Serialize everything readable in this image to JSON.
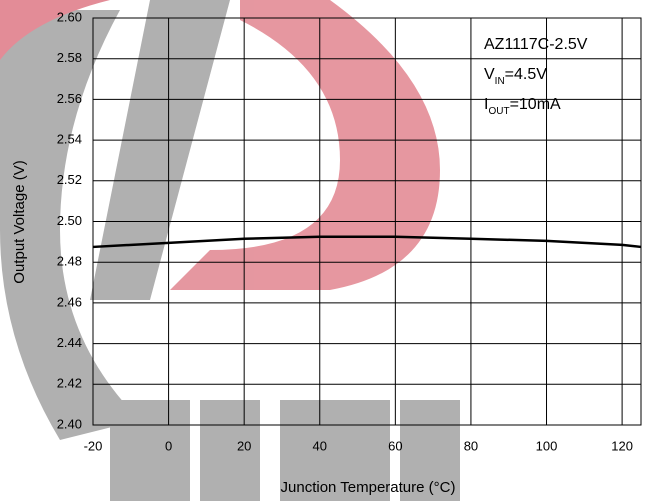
{
  "chart_data": {
    "type": "line",
    "xlabel": "Junction Temperature (°C)",
    "ylabel": "Output Voltage (V)",
    "annotations": [
      "AZ1117C-2.5V",
      [
        "V",
        "IN",
        "=4.5V"
      ],
      [
        "I",
        "OUT",
        "=10mA"
      ]
    ],
    "x": [
      -20,
      0,
      20,
      40,
      60,
      80,
      100,
      120,
      125
    ],
    "series": [
      {
        "color": "#000000",
        "values": [
          2.4875,
          2.4895,
          2.4915,
          2.4925,
          2.4925,
          2.4915,
          2.4905,
          2.4885,
          2.4875
        ]
      }
    ],
    "xlim": [
      -20,
      125
    ],
    "xticks": [
      -20,
      0,
      20,
      40,
      60,
      80,
      100,
      120
    ],
    "ylim": [
      2.4,
      2.6
    ],
    "yticks": [
      {
        "value": 2.4,
        "label": "2.40"
      },
      2.42,
      2.44,
      2.46,
      2.48,
      {
        "value": 2.5,
        "label": "2.50"
      },
      2.52,
      2.54,
      2.56,
      2.58,
      {
        "value": 2.6,
        "label": "2.60"
      }
    ],
    "grid": true
  }
}
